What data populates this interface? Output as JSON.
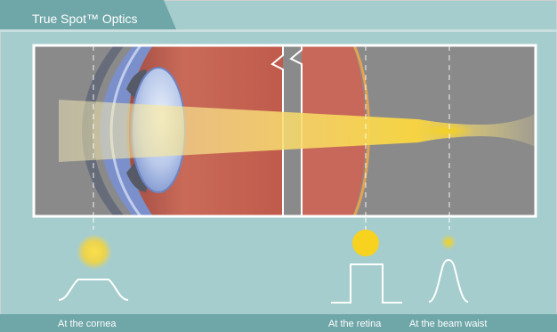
{
  "title": "True Spot™ Optics",
  "captions": {
    "cornea": "At the cornea",
    "retina": "At the retina",
    "waist": "At the beam waist"
  },
  "colors": {
    "background": "#a6cdcd",
    "title_bar": "#6fa6a8",
    "caption_bar": "#6fa6a8",
    "eye_box": "#8a8a8a",
    "beam": "#f6d75f",
    "spot": "#f7d21e",
    "tissue": "#c5604e",
    "cornea": "#6f86c4"
  },
  "icons": [
    "flat-top-profile-icon",
    "top-hat-profile-icon",
    "gaussian-profile-icon"
  ]
}
